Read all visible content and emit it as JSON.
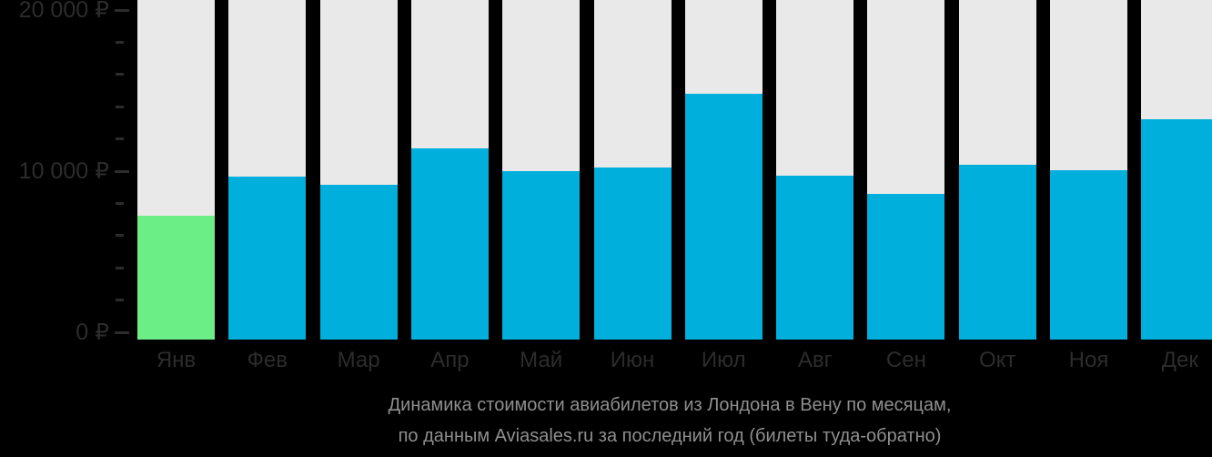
{
  "chart_data": {
    "type": "bar",
    "title": "Динамика стоимости авиабилетов из Лондона в Вену по месяцам, по данным Aviasales.ru за последний год (билеты туда-обратно)",
    "title_lines": [
      "Динамика стоимости авиабилетов из Лондона в Вену по месяцам,",
      "по данным Aviasales.ru за последний год (билеты туда-обратно)"
    ],
    "categories": [
      "Янв",
      "Фев",
      "Мар",
      "Апр",
      "Май",
      "Июн",
      "Июл",
      "Авг",
      "Сен",
      "Окт",
      "Ноя",
      "Дек"
    ],
    "values": [
      7300,
      9600,
      9100,
      11250,
      9900,
      10150,
      14500,
      9650,
      8600,
      10300,
      10000,
      13000
    ],
    "highlight_index": 0,
    "xlabel": "",
    "ylabel": "",
    "ylim": [
      0,
      20000
    ],
    "grid": false,
    "legend_position": "none",
    "y_axis": {
      "major_ticks": [
        {
          "value": 20000,
          "label": "20 000 ₽"
        },
        {
          "value": 10000,
          "label": "10 000 ₽"
        },
        {
          "value": 0,
          "label": "0 ₽"
        }
      ],
      "minor_tick_step": 2000
    }
  },
  "colors": {
    "background": "#000000",
    "bar": "#00afdb",
    "bar_highlight": "#6cee87",
    "bar_track": "#e9e9e9",
    "axis_text": "#2c2c2c",
    "title_text": "#8f8f8f"
  }
}
